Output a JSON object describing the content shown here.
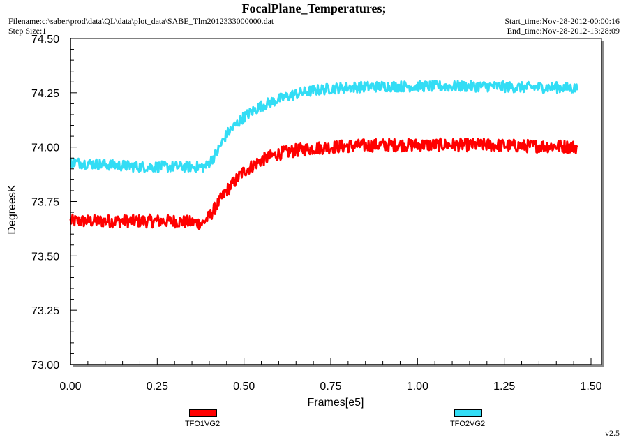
{
  "header": {
    "title": "FocalPlane_Temperatures;",
    "filename": "Filename:c:\\saber\\prod\\data\\QL\\data\\plot_data\\SABE_Tlm2012333000000.dat",
    "step_size": "Step Size:1",
    "start_time": "Start_time:Nov-28-2012-00:00:16",
    "end_time": "End_time:Nov-28-2012-13:28:09"
  },
  "version": "v2.5",
  "colors": {
    "TFO1VG2": "#ff0000",
    "TFO2VG2": "#33ddf5"
  },
  "chart_data": {
    "type": "line",
    "title": "FocalPlane_Temperatures;",
    "xlabel": "Frames[e5]",
    "ylabel": "DegreesK",
    "xlim": [
      0.0,
      1.5
    ],
    "ylim": [
      73.0,
      74.5
    ],
    "x_ticks": [
      "0.00",
      "0.25",
      "0.50",
      "0.75",
      "1.00",
      "1.25",
      "1.50"
    ],
    "y_ticks": [
      "73.00",
      "73.25",
      "73.50",
      "73.75",
      "74.00",
      "74.25",
      "74.50"
    ],
    "grid": false,
    "legend_position": "bottom",
    "series": [
      {
        "name": "TFO1VG2",
        "color": "#ff0000",
        "noise_band": 0.06,
        "x": [
          0.0,
          0.1,
          0.2,
          0.3,
          0.38,
          0.4,
          0.45,
          0.5,
          0.55,
          0.6,
          0.65,
          0.7,
          0.75,
          0.8,
          0.9,
          1.0,
          1.1,
          1.2,
          1.3,
          1.4,
          1.46
        ],
        "y": [
          73.66,
          73.66,
          73.66,
          73.66,
          73.65,
          73.68,
          73.8,
          73.89,
          73.94,
          73.97,
          73.985,
          73.995,
          74.0,
          74.005,
          74.01,
          74.01,
          74.01,
          74.01,
          74.005,
          74.005,
          74.0
        ]
      },
      {
        "name": "TFO2VG2",
        "color": "#33ddf5",
        "noise_band": 0.05,
        "x": [
          0.0,
          0.1,
          0.2,
          0.3,
          0.39,
          0.42,
          0.45,
          0.5,
          0.55,
          0.6,
          0.65,
          0.7,
          0.75,
          0.8,
          0.9,
          1.0,
          1.1,
          1.2,
          1.3,
          1.4,
          1.46
        ],
        "y": [
          73.93,
          73.92,
          73.91,
          73.91,
          73.91,
          73.97,
          74.06,
          74.14,
          74.19,
          74.22,
          74.245,
          74.26,
          74.27,
          74.275,
          74.28,
          74.28,
          74.28,
          74.28,
          74.275,
          74.275,
          74.27
        ]
      }
    ]
  }
}
